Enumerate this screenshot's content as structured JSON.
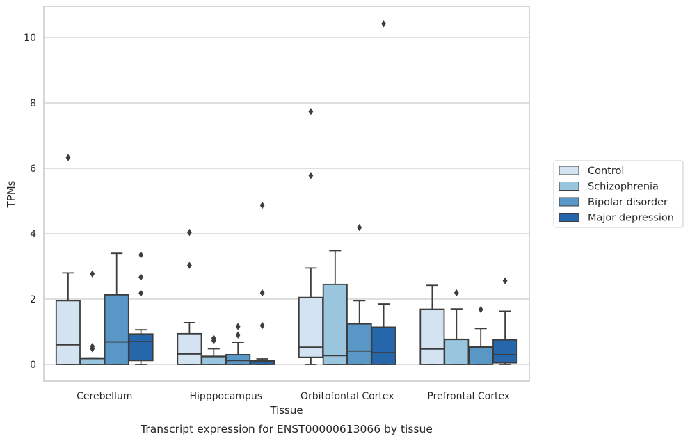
{
  "chart_data": {
    "type": "box",
    "caption": "Transcript expression for ENST00000613066 by tissue",
    "xlabel": "Tissue",
    "ylabel": "TPMs",
    "ylim": [
      -0.5,
      10.95
    ],
    "yticks": [
      0,
      2,
      4,
      6,
      8,
      10
    ],
    "grid": true,
    "legend_position": "right",
    "categories": [
      "Cerebellum",
      "Hipppocampus",
      "Orbitofontal Cortex",
      "Prefrontal Cortex"
    ],
    "series": [
      {
        "name": "Control",
        "color": "#d3e3f1",
        "boxes": [
          {
            "whislo": 0,
            "q1": 0,
            "med": 0.6,
            "q3": 1.95,
            "whishi": 2.8,
            "fliers": [
              6.33
            ]
          },
          {
            "whislo": 0,
            "q1": 0,
            "med": 0.32,
            "q3": 0.94,
            "whishi": 1.28,
            "fliers": [
              3.03,
              4.04
            ]
          },
          {
            "whislo": 0,
            "q1": 0.22,
            "med": 0.53,
            "q3": 2.05,
            "whishi": 2.95,
            "fliers": [
              5.78,
              7.74
            ]
          },
          {
            "whislo": 0,
            "q1": 0,
            "med": 0.47,
            "q3": 1.69,
            "whishi": 2.42,
            "fliers": []
          }
        ]
      },
      {
        "name": "Schizophrenia",
        "color": "#9ac5df",
        "boxes": [
          {
            "whislo": 0,
            "q1": 0,
            "med": 0.18,
            "q3": 0.2,
            "whishi": 0.2,
            "fliers": [
              0.48,
              0.55,
              2.77
            ]
          },
          {
            "whislo": 0,
            "q1": 0,
            "med": 0.24,
            "q3": 0.25,
            "whishi": 0.48,
            "fliers": [
              0.73,
              0.8
            ]
          },
          {
            "whislo": 0,
            "q1": 0,
            "med": 0.27,
            "q3": 2.45,
            "whishi": 3.48,
            "fliers": []
          },
          {
            "whislo": 0,
            "q1": 0,
            "med": 0.76,
            "q3": 0.77,
            "whishi": 1.7,
            "fliers": [
              2.19
            ]
          }
        ]
      },
      {
        "name": "Bipolar disorder",
        "color": "#5897c6",
        "boxes": [
          {
            "whislo": 0,
            "q1": 0,
            "med": 0.69,
            "q3": 2.13,
            "whishi": 3.4,
            "fliers": []
          },
          {
            "whislo": 0,
            "q1": 0,
            "med": 0.12,
            "q3": 0.3,
            "whishi": 0.68,
            "fliers": [
              0.9,
              1.16
            ]
          },
          {
            "whislo": 0,
            "q1": 0,
            "med": 0.41,
            "q3": 1.24,
            "whishi": 1.95,
            "fliers": [
              4.19
            ]
          },
          {
            "whislo": 0,
            "q1": 0,
            "med": 0.53,
            "q3": 0.54,
            "whishi": 1.1,
            "fliers": [
              1.68
            ]
          }
        ]
      },
      {
        "name": "Major depression",
        "color": "#2666aa",
        "boxes": [
          {
            "whislo": 0,
            "q1": 0.12,
            "med": 0.7,
            "q3": 0.93,
            "whishi": 1.06,
            "fliers": [
              2.18,
              2.67,
              3.35
            ]
          },
          {
            "whislo": 0,
            "q1": 0,
            "med": 0.08,
            "q3": 0.11,
            "whishi": 0.17,
            "fliers": [
              1.19,
              2.19,
              4.87
            ]
          },
          {
            "whislo": 0,
            "q1": 0,
            "med": 0.36,
            "q3": 1.14,
            "whishi": 1.85,
            "fliers": [
              10.42
            ]
          },
          {
            "whislo": 0,
            "q1": 0.05,
            "med": 0.3,
            "q3": 0.75,
            "whishi": 1.63,
            "fliers": [
              2.56
            ]
          }
        ]
      }
    ]
  },
  "colors": {
    "grid": "#cccccc",
    "frame": "#cccccc",
    "box_edge": "#3d3d3d",
    "legend_edge": "#cccccc"
  }
}
